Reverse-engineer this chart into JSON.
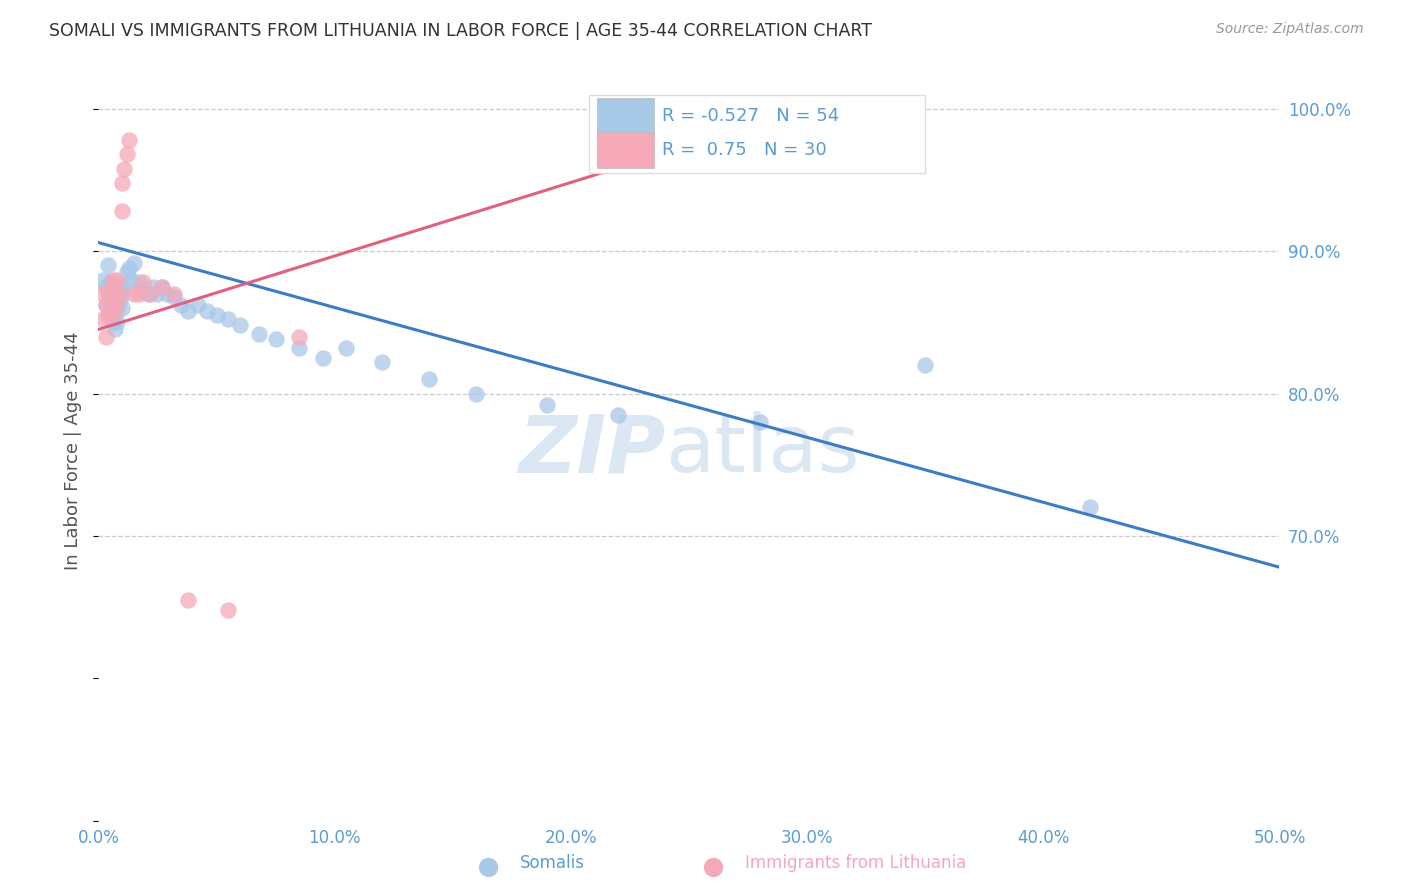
{
  "title": "SOMALI VS IMMIGRANTS FROM LITHUANIA IN LABOR FORCE | AGE 35-44 CORRELATION CHART",
  "source": "Source: ZipAtlas.com",
  "ylabel": "In Labor Force | Age 35-44",
  "xlim": [
    0.0,
    0.5
  ],
  "ylim": [
    0.5,
    1.02
  ],
  "xticks": [
    0.0,
    0.1,
    0.2,
    0.3,
    0.4,
    0.5
  ],
  "yticks_right": [
    0.7,
    0.8,
    0.9,
    1.0
  ],
  "blue_R": -0.527,
  "blue_N": 54,
  "pink_R": 0.75,
  "pink_N": 30,
  "blue_color": "#A8C8E8",
  "pink_color": "#F4A8B8",
  "blue_line_color": "#3B7CC4",
  "pink_line_color": "#E06080",
  "watermark_zip": "ZIP",
  "watermark_atlas": "atlas",
  "legend_label_blue": "Somalis",
  "legend_label_pink": "Immigrants from Lithuania",
  "blue_scatter_x": [
    0.002,
    0.003,
    0.003,
    0.004,
    0.004,
    0.005,
    0.005,
    0.005,
    0.006,
    0.006,
    0.006,
    0.007,
    0.007,
    0.007,
    0.008,
    0.008,
    0.008,
    0.009,
    0.009,
    0.01,
    0.01,
    0.011,
    0.012,
    0.013,
    0.014,
    0.015,
    0.017,
    0.019,
    0.021,
    0.023,
    0.025,
    0.027,
    0.029,
    0.032,
    0.035,
    0.038,
    0.042,
    0.046,
    0.05,
    0.055,
    0.06,
    0.068,
    0.075,
    0.085,
    0.095,
    0.105,
    0.12,
    0.14,
    0.16,
    0.19,
    0.22,
    0.28,
    0.35,
    0.42
  ],
  "blue_scatter_y": [
    0.88,
    0.875,
    0.862,
    0.89,
    0.87,
    0.878,
    0.865,
    0.855,
    0.872,
    0.86,
    0.85,
    0.868,
    0.856,
    0.845,
    0.872,
    0.86,
    0.85,
    0.875,
    0.865,
    0.87,
    0.86,
    0.875,
    0.885,
    0.888,
    0.88,
    0.892,
    0.878,
    0.872,
    0.87,
    0.875,
    0.87,
    0.875,
    0.87,
    0.868,
    0.862,
    0.858,
    0.862,
    0.858,
    0.855,
    0.852,
    0.848,
    0.842,
    0.838,
    0.832,
    0.825,
    0.832,
    0.822,
    0.81,
    0.8,
    0.792,
    0.785,
    0.78,
    0.82,
    0.72
  ],
  "pink_scatter_x": [
    0.002,
    0.002,
    0.003,
    0.003,
    0.004,
    0.004,
    0.005,
    0.005,
    0.006,
    0.006,
    0.007,
    0.007,
    0.008,
    0.008,
    0.009,
    0.01,
    0.01,
    0.011,
    0.012,
    0.013,
    0.015,
    0.017,
    0.019,
    0.022,
    0.027,
    0.032,
    0.038,
    0.055,
    0.085,
    0.31
  ],
  "pink_scatter_y": [
    0.87,
    0.852,
    0.862,
    0.84,
    0.872,
    0.855,
    0.87,
    0.855,
    0.88,
    0.862,
    0.872,
    0.858,
    0.88,
    0.865,
    0.87,
    0.928,
    0.948,
    0.958,
    0.968,
    0.978,
    0.87,
    0.87,
    0.878,
    0.87,
    0.875,
    0.87,
    0.655,
    0.648,
    0.84,
    1.0
  ],
  "blue_trend_x": [
    0.0,
    0.5
  ],
  "blue_trend_y": [
    0.906,
    0.678
  ],
  "pink_trend_x": [
    0.0,
    0.31
  ],
  "pink_trend_y": [
    0.845,
    1.005
  ]
}
